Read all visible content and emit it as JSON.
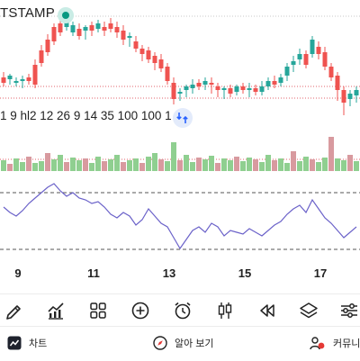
{
  "header": {
    "symbol": "TSTAMP"
  },
  "indicator_params": "1 9 hl2 12 26 9 14 35 100 100 1",
  "icons": {
    "status": "status-dot-icon",
    "swap": "swap-arrows-icon"
  },
  "colors": {
    "up": "#26a69a",
    "down": "#ef5350",
    "volume_up": "#8fcf90",
    "volume_down": "#d89a9f",
    "oscillator": "#6b62c9",
    "reference_line": "#e0636b",
    "accent": "#089981"
  },
  "chart_data": {
    "type": "candlestick",
    "x_ticks": [
      "9",
      "11",
      "13",
      "15",
      "17"
    ],
    "price_reference_lines": "dotted red",
    "panels": [
      "price",
      "volume",
      "oscillator"
    ],
    "oscillator_bands": "dashed upper and lower"
  },
  "toolbar": {
    "items": [
      {
        "name": "drawing-tool",
        "icon": "pen-icon"
      },
      {
        "name": "indicators",
        "icon": "indicators-icon"
      },
      {
        "name": "layouts",
        "icon": "grid-icon"
      },
      {
        "name": "add",
        "icon": "plus-circle-icon"
      },
      {
        "name": "alert",
        "icon": "alarm-clock-icon"
      },
      {
        "name": "chart-type",
        "icon": "candles-icon"
      },
      {
        "name": "replay",
        "icon": "rewind-icon"
      },
      {
        "name": "layers",
        "icon": "layers-icon"
      },
      {
        "name": "settings",
        "icon": "sliders-icon"
      }
    ]
  },
  "bottom_nav": {
    "chart": "차트",
    "explore": "알아 보기",
    "community": "커뮤니티"
  }
}
